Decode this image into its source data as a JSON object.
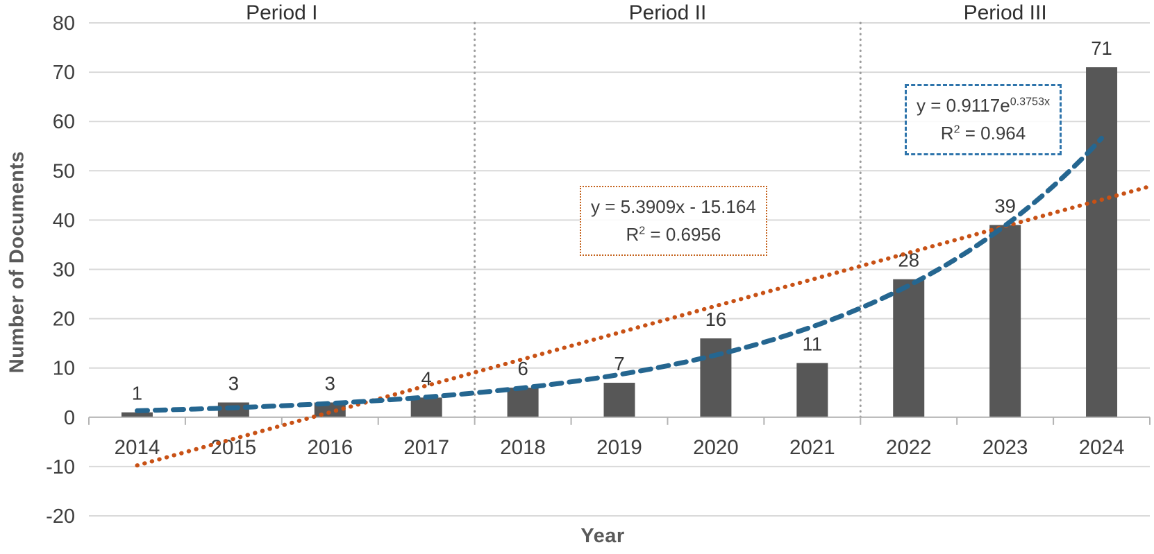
{
  "chart_data": {
    "type": "bar",
    "title": "",
    "xlabel": "Year",
    "ylabel": "Number of Documents",
    "categories": [
      "2014",
      "2015",
      "2016",
      "2017",
      "2018",
      "2019",
      "2020",
      "2021",
      "2022",
      "2023",
      "2024"
    ],
    "values": [
      1,
      3,
      3,
      4,
      6,
      7,
      16,
      11,
      28,
      39,
      71
    ],
    "ylim": [
      -20,
      80
    ],
    "ytick_step": 10,
    "yticks": [
      -20,
      -10,
      0,
      10,
      20,
      30,
      40,
      50,
      60,
      70,
      80
    ],
    "grid": "horizontal",
    "legend": "none",
    "bar_color": "#575757",
    "gridline_color": "#d9d9d9",
    "axis_line_color": "#b3b3b3",
    "tick_label_color": "#3d3d3d",
    "data_label_color": "#353535",
    "periods": [
      {
        "label": "Period I",
        "start_category": "2014",
        "end_category": "2017"
      },
      {
        "label": "Period II",
        "start_category": "2018",
        "end_category": "2021"
      },
      {
        "label": "Period III",
        "start_category": "2022",
        "end_category": "2024"
      }
    ],
    "separators_after_category": [
      "2017",
      "2021"
    ],
    "separator_color": "#9c9c9c",
    "trendlines": [
      {
        "name": "linear",
        "line_style": "dotted",
        "color": "#c85115",
        "slope": 5.3909,
        "intercept": -15.164,
        "x_start": 1,
        "x_end": 11.5,
        "equation_text": "y = 5.3909x - 15.164",
        "r2_text": "R² = 0.6956"
      },
      {
        "name": "exponential",
        "line_style": "dashed",
        "color": "#256690",
        "coefficient": 0.9117,
        "rate": 0.3753,
        "x_start": 1,
        "x_end": 11,
        "equation_text": "y = 0.9117e^(0.3753x)",
        "r2_text": "R² = 0.964"
      }
    ]
  },
  "annotations": {
    "linear_box": {
      "line1": "y = 5.3909x - 15.164",
      "r2_prefix": "R",
      "r2_sup": "2",
      "r2_suffix": " = 0.6956"
    },
    "exp_box": {
      "line1_prefix": "y = 0.9117e",
      "line1_sup": "0.3753x",
      "r2_prefix": "R",
      "r2_sup": "2",
      "r2_suffix": " = 0.964"
    }
  }
}
